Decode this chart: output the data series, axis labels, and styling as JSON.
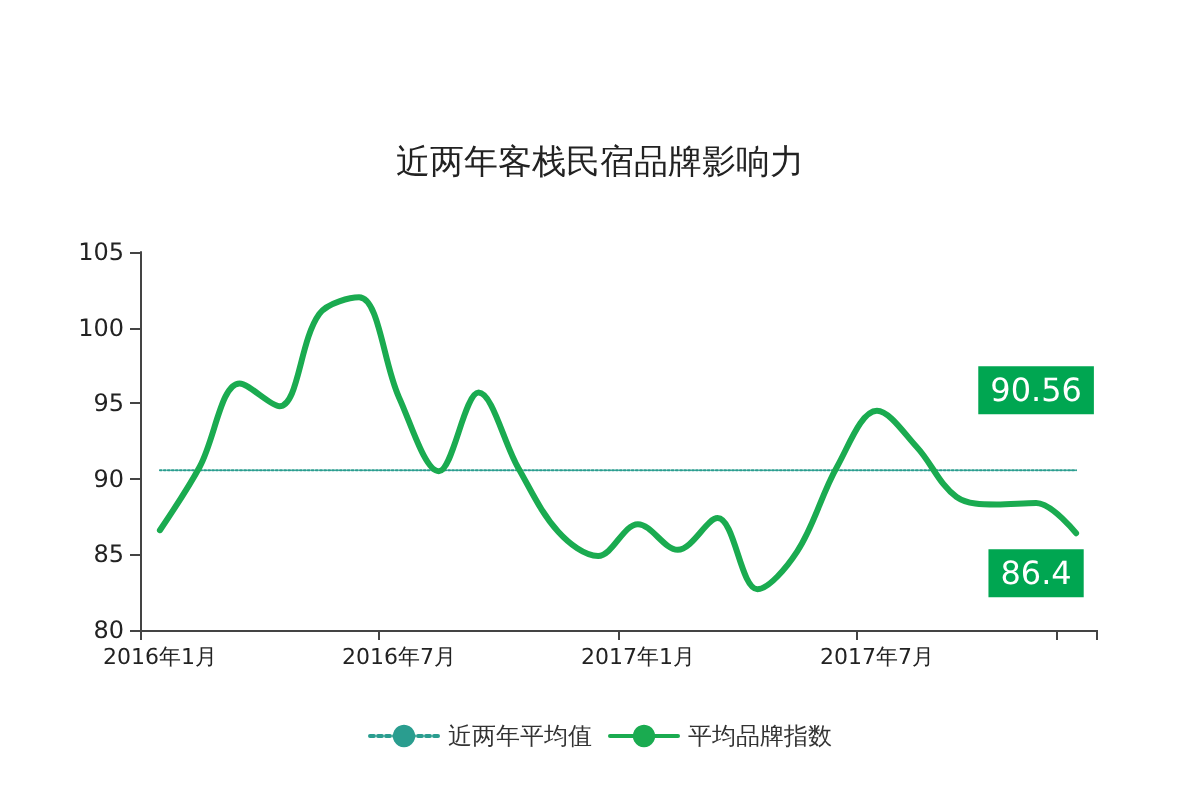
{
  "chart_data": {
    "type": "line",
    "title": "近两年客栈民宿品牌影响力",
    "categories": [
      "2016年1月",
      null,
      null,
      null,
      null,
      null,
      "2016年7月",
      null,
      null,
      null,
      null,
      null,
      "2017年1月",
      null,
      null,
      null,
      null,
      null,
      "2017年7月",
      null,
      null,
      null,
      null,
      null
    ],
    "series": [
      {
        "name": "近两年平均值",
        "color": "#2a9d8f",
        "line_style": "dotted",
        "values": [
          90.56,
          90.56,
          90.56,
          90.56,
          90.56,
          90.56,
          90.56,
          90.56,
          90.56,
          90.56,
          90.56,
          90.56,
          90.56,
          90.56,
          90.56,
          90.56,
          90.56,
          90.56,
          90.56,
          90.56,
          90.56,
          90.56,
          90.56,
          90.56
        ],
        "value_labels": [
          null,
          null,
          null,
          null,
          null,
          null,
          null,
          null,
          null,
          null,
          null,
          null,
          null,
          null,
          null,
          null,
          null,
          null,
          null,
          null,
          null,
          null,
          null,
          "90.56"
        ]
      },
      {
        "name": "平均品牌指数",
        "color": "#1aab50",
        "line_style": "solid",
        "values": [
          86.6,
          90.8,
          96.3,
          94.8,
          100.9,
          102,
          95.4,
          90.5,
          95.7,
          90.7,
          86.5,
          84.9,
          87.0,
          85.3,
          87.4,
          82.7,
          85.2,
          90.8,
          94.5,
          92.1,
          88.8,
          88.3,
          88.4,
          86.4
        ],
        "value_labels": [
          null,
          null,
          null,
          null,
          null,
          null,
          null,
          null,
          null,
          null,
          null,
          null,
          null,
          null,
          null,
          null,
          null,
          null,
          null,
          null,
          null,
          null,
          null,
          "86.4"
        ]
      }
    ],
    "ylim": [
      80,
      105
    ],
    "yticks": [
      80,
      85,
      90,
      95,
      100,
      105
    ],
    "grid": false,
    "legend": "bottom",
    "marker": "none"
  }
}
